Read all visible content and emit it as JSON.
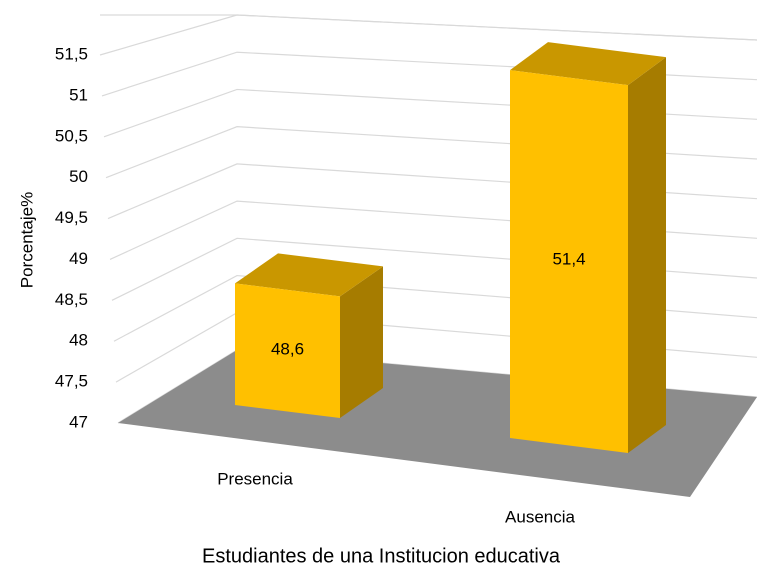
{
  "chart_data": {
    "type": "bar3d",
    "x_label": "Estudiantes de una Institucion educativa",
    "y_label": "Porcentaje%",
    "categories": [
      "Presencia",
      "Ausencia"
    ],
    "values": [
      48.6,
      51.4
    ],
    "value_labels": [
      "48,6",
      "51,4"
    ],
    "color": "#ffc000",
    "ylim": [
      47,
      51.5
    ],
    "yticks": [
      47,
      {
        "value": 47.5,
        "label": "47,5"
      },
      48,
      {
        "value": 48.5,
        "label": "48,5"
      },
      49,
      {
        "value": 49.5,
        "label": "49,5"
      },
      50,
      {
        "value": 50.5,
        "label": "50,5"
      },
      51,
      {
        "value": 51.5,
        "label": "51,5"
      }
    ],
    "grid": true
  }
}
